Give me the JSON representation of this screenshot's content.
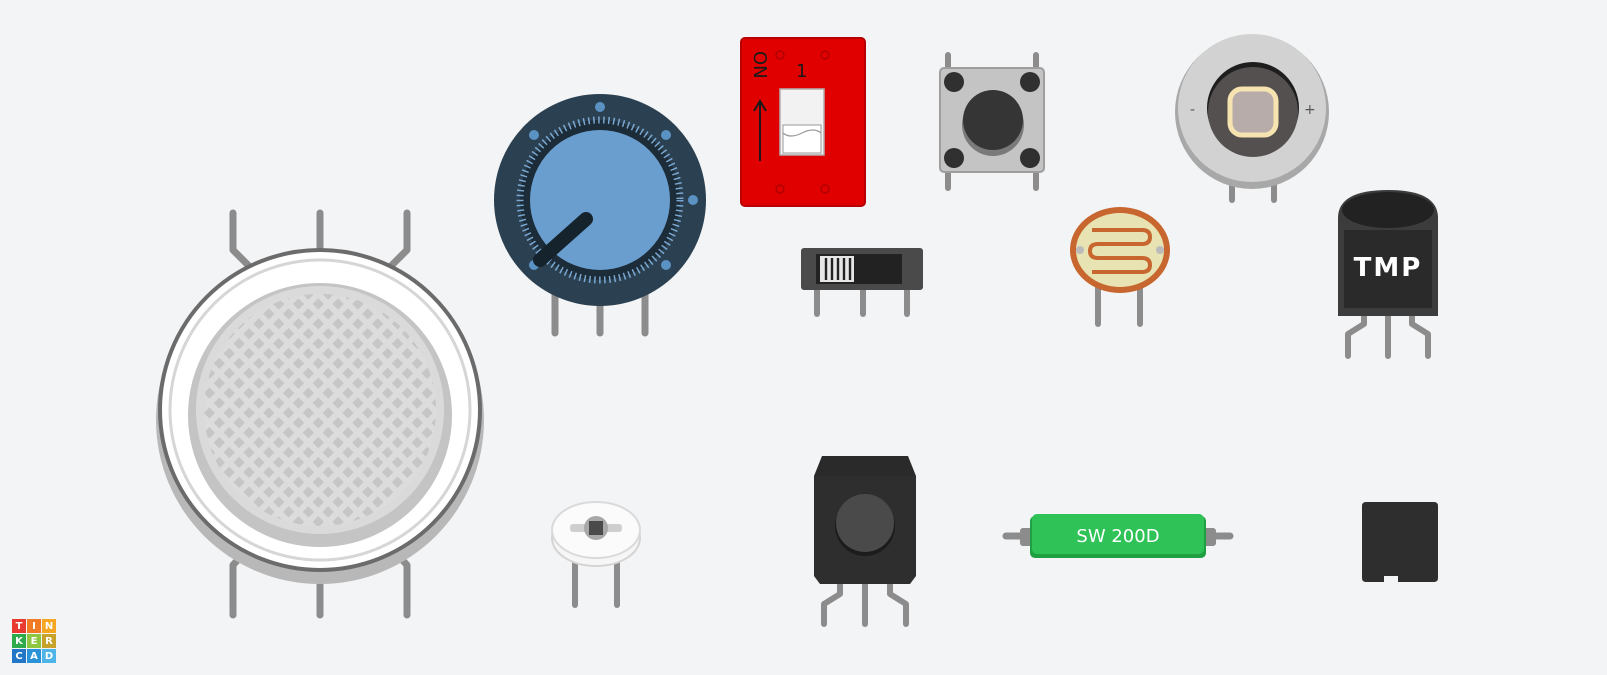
{
  "workspace": {
    "background": "#f2f4f6"
  },
  "components": {
    "gas_sensor": {
      "name": "gas-sensor"
    },
    "potentiometer": {
      "name": "potentiometer"
    },
    "dip_switch": {
      "on_label": "ON",
      "number_label": "1",
      "color": "#e00000"
    },
    "pushbutton": {
      "name": "pushbutton"
    },
    "slide_switch": {
      "name": "slide-switch"
    },
    "piezo": {
      "minus_label": "-",
      "plus_label": "+"
    },
    "photoresistor": {
      "name": "photoresistor"
    },
    "temperature_sensor": {
      "label": "TMP"
    },
    "pir_sensor": {
      "name": "pir-sensor"
    },
    "ir_receiver": {
      "name": "ir-receiver"
    },
    "tilt_sensor": {
      "label": "SW 200D",
      "color": "#21b24b"
    },
    "flex_sensor": {
      "name": "force-sensor"
    }
  },
  "logo": {
    "letters": [
      "T",
      "I",
      "N",
      "K",
      "E",
      "R",
      "C",
      "A",
      "D"
    ],
    "colors": [
      "#e83a30",
      "#f07b24",
      "#f5a623",
      "#2faa4a",
      "#8dc63f",
      "#c7a32c",
      "#2176c7",
      "#2a92d6",
      "#4fb4e8"
    ]
  }
}
